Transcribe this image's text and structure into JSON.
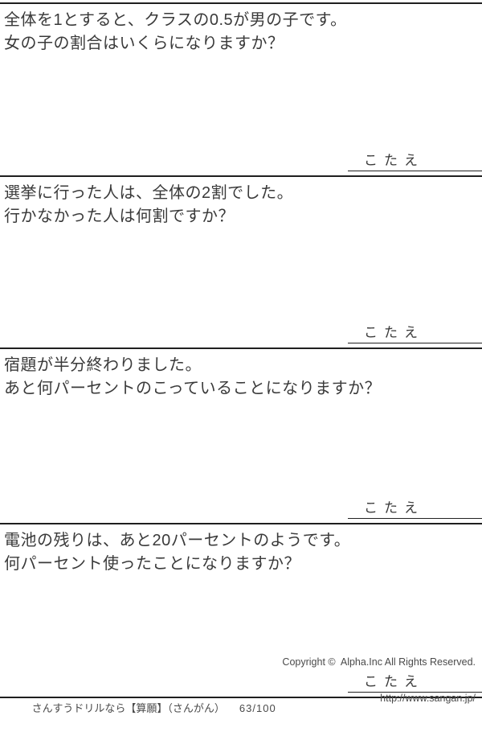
{
  "problems": [
    {
      "lines": [
        "全体を1とすると、クラスの0.5が男の子です。",
        "女の子の割合はいくらになりますか？"
      ],
      "answer_label": "こたえ"
    },
    {
      "lines": [
        "選挙に行った人は、全体の2割でした。",
        "行かなかった人は何割ですか？"
      ],
      "answer_label": "こたえ"
    },
    {
      "lines": [
        "宿題が半分終わりました。",
        "あと何パーセントのこっていることになりますか？"
      ],
      "answer_label": "こたえ"
    },
    {
      "lines": [
        "電池の残りは、あと20パーセントのようです。",
        "何パーセント使ったことになりますか？"
      ],
      "answer_label": "こたえ"
    }
  ],
  "footer": {
    "site_label": "さんすうドリルなら【算願】（さんがん）",
    "page_number": "63/100",
    "copyright": "Copyright ©  Alpha.Inc All Rights Reserved.",
    "url": "http://www.sangan.jp/"
  },
  "colors": {
    "text": "#3a3a3a",
    "rule_line": "#1f1f1f",
    "background": "#ffffff"
  }
}
